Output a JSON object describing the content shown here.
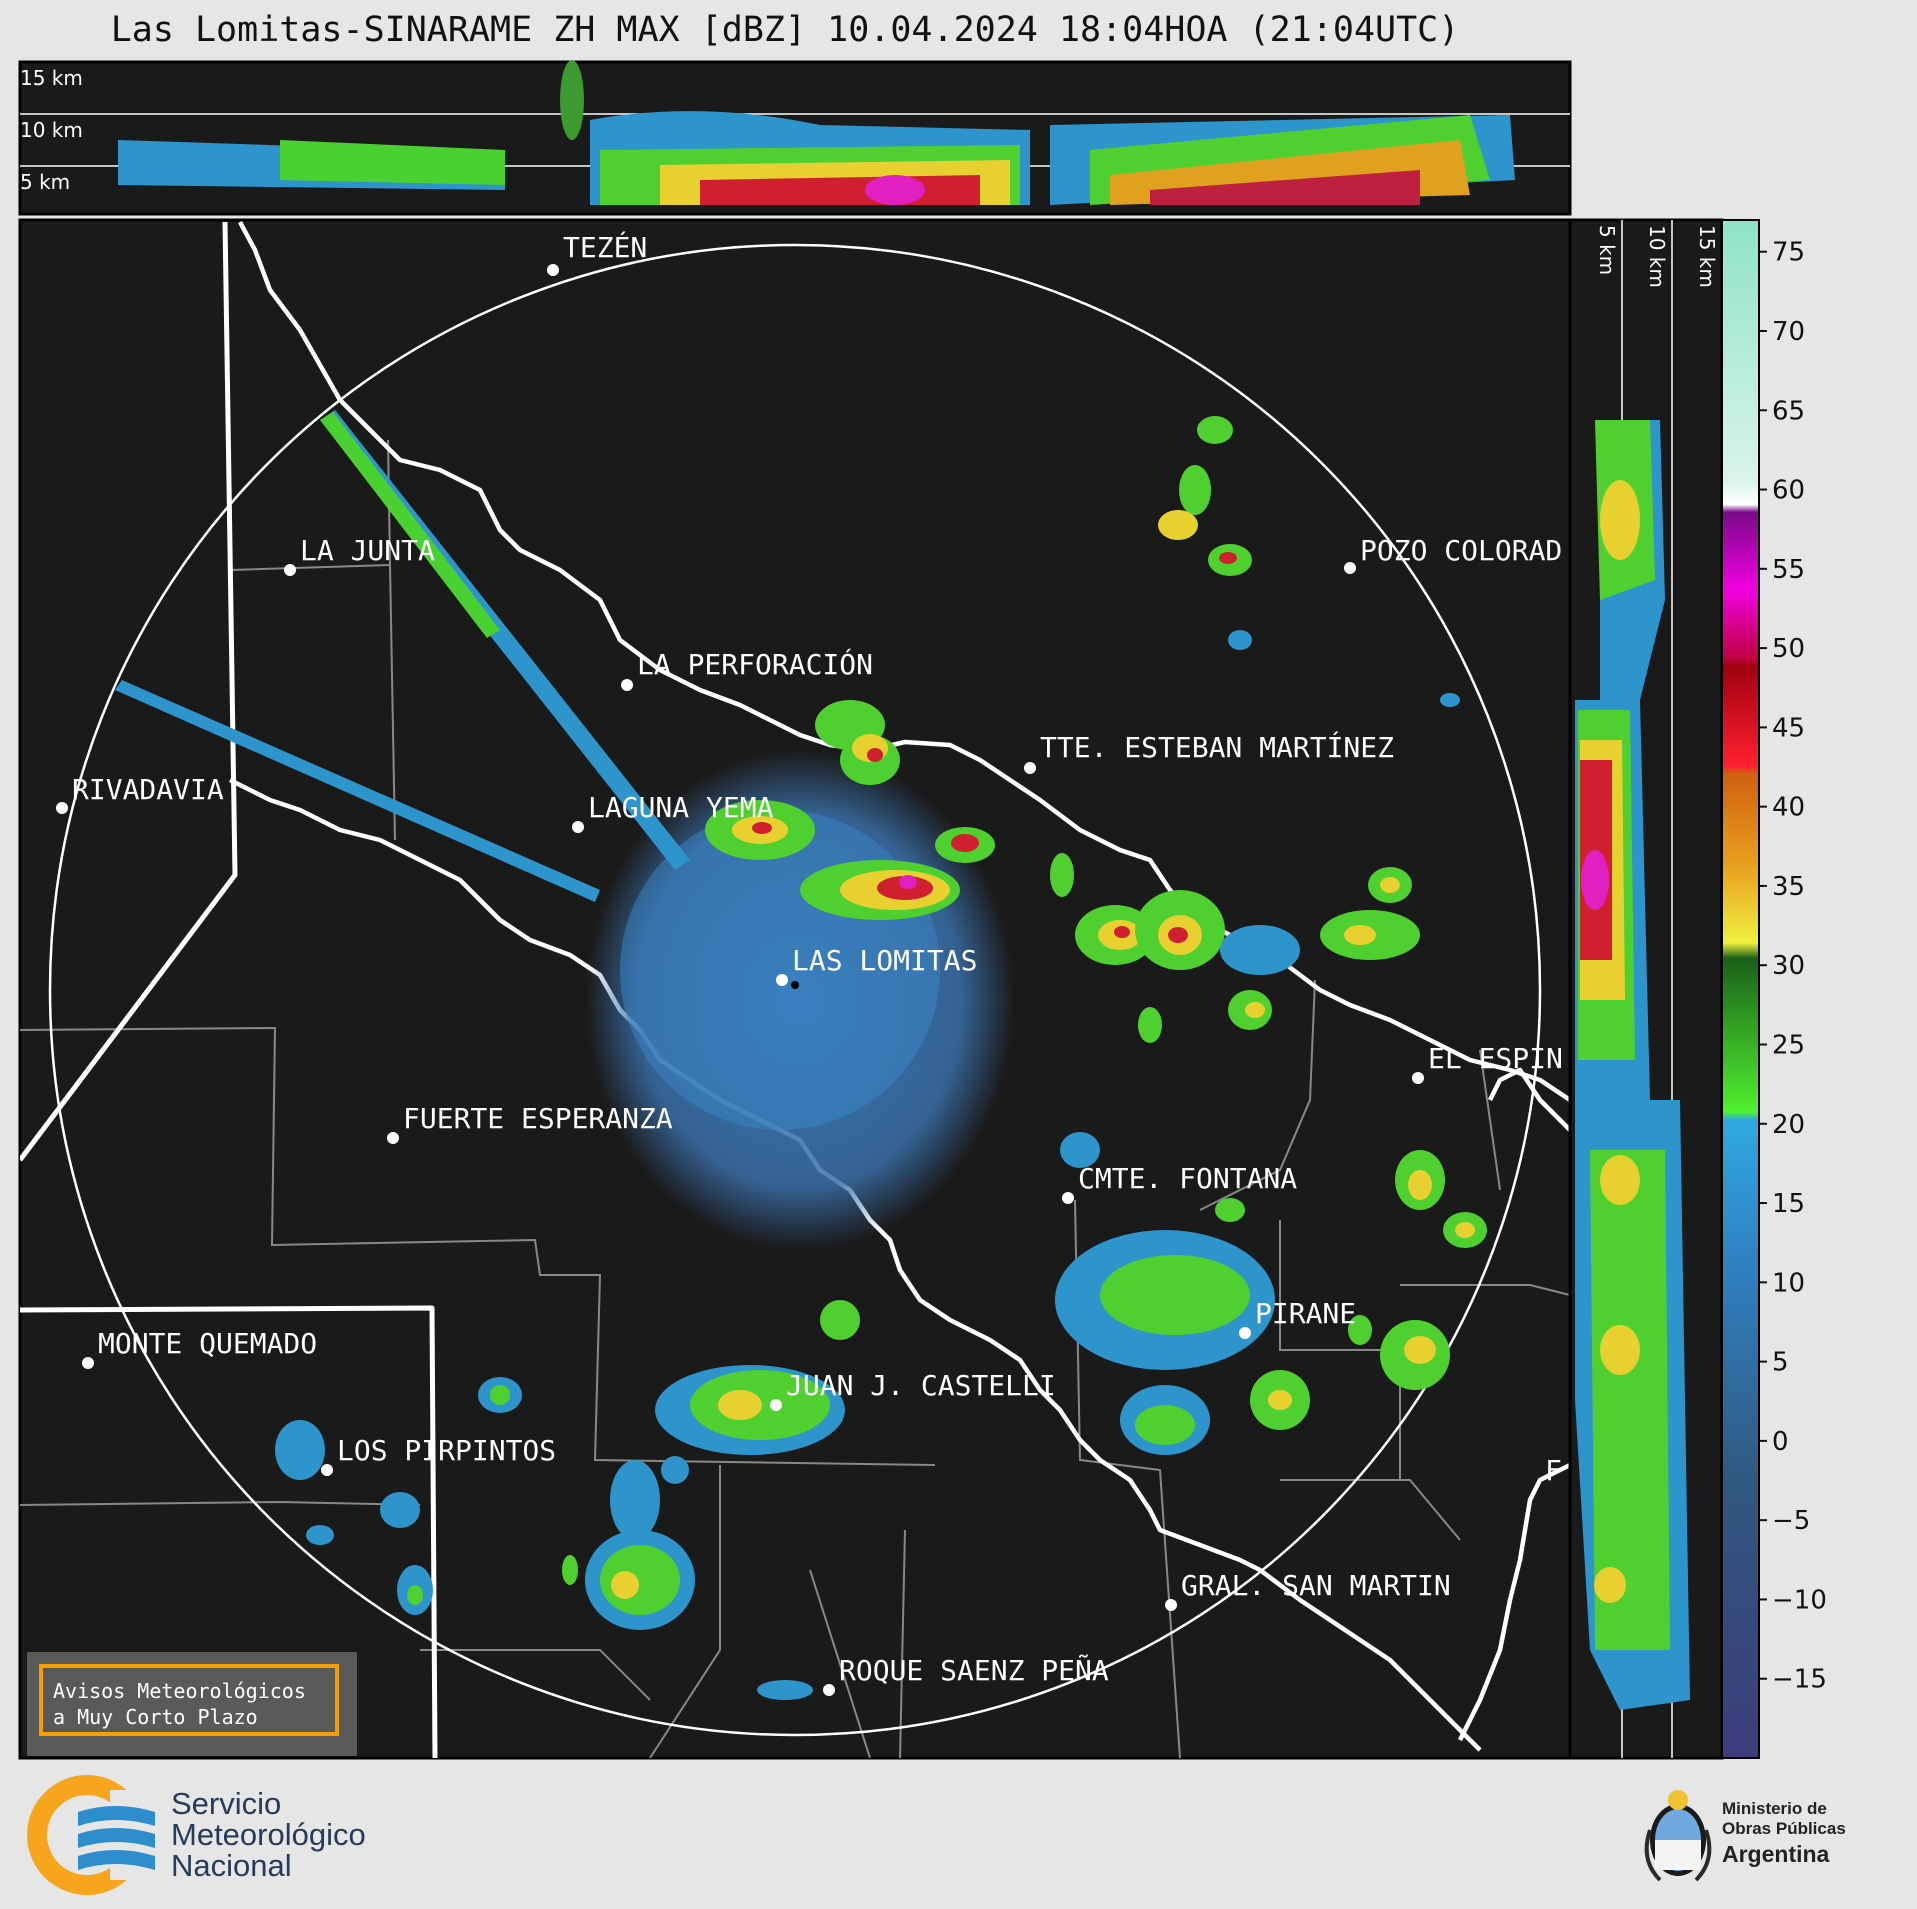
{
  "title": "Las Lomitas-SINARAME ZH MAX [dBZ] 10.04.2024 18:04HOA (21:04UTC)",
  "top_profile": {
    "labels": [
      "15 km",
      "10 km",
      "5 km"
    ]
  },
  "side_profile": {
    "labels": [
      "5 km",
      "10 km",
      "15 km"
    ]
  },
  "colorbar": {
    "ticks": [
      "75",
      "70",
      "65",
      "60",
      "55",
      "50",
      "45",
      "40",
      "35",
      "30",
      "25",
      "20",
      "15",
      "10",
      "5",
      "0",
      "−5",
      "−10",
      "−15"
    ],
    "range_dbz": [
      -20,
      77
    ]
  },
  "places": [
    {
      "name": "TEZÉN"
    },
    {
      "name": "LA JUNTA"
    },
    {
      "name": "POZO COLORAD"
    },
    {
      "name": "LA PERFORACIÓN"
    },
    {
      "name": "TTE. ESTEBAN MARTÍNEZ"
    },
    {
      "name": "RIVADAVIA"
    },
    {
      "name": "LAGUNA YEMA"
    },
    {
      "name": "LAS LOMITAS"
    },
    {
      "name": "EL ESPIN"
    },
    {
      "name": "FUERTE ESPERANZA"
    },
    {
      "name": "CMTE. FONTANA"
    },
    {
      "name": "PIRANE"
    },
    {
      "name": "MONTE QUEMADO"
    },
    {
      "name": "JUAN J. CASTELLI"
    },
    {
      "name": "LOS PIRPINTOS"
    },
    {
      "name": "GRAL. SAN MARTIN"
    },
    {
      "name": "ROQUE SAENZ PEÑA"
    },
    {
      "name": "F"
    }
  ],
  "aviso": {
    "line1": "Avisos Meteorológicos",
    "line2": "a Muy Corto Plazo"
  },
  "smn": {
    "line1": "Servicio",
    "line2": "Meteorológico",
    "line3": "Nacional"
  },
  "ministerio": {
    "line1": "Ministerio de",
    "line2": "Obras Públicas",
    "line3": "Argentina"
  },
  "colors": {
    "map_bg": "#1a1a1a",
    "page_bg": "#e6e6e6",
    "border": "#ffffff",
    "aviso_border": "#f5a000"
  }
}
